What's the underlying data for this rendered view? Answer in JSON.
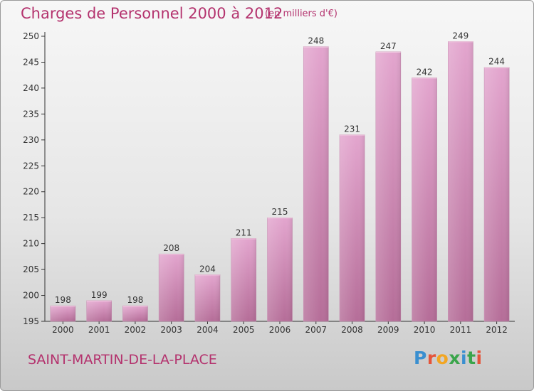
{
  "header": {
    "title": "Charges de Personnel 2000 à 2012",
    "subtitle": "(en milliers d'€)"
  },
  "footer": {
    "commune": "SAINT-MARTIN-DE-LA-PLACE",
    "logo_letters": [
      "P",
      "r",
      "o",
      "x",
      "i",
      "t",
      "i"
    ],
    "logo_colors": [
      "#3a8fd0",
      "#e5543a",
      "#f2a623",
      "#3aa54b",
      "#3a8fd0",
      "#3aa54b",
      "#e5543a"
    ]
  },
  "colors": {
    "bar_light": "#e3a5ce",
    "bar_dark": "#b56d98",
    "accent": "#b4336e"
  },
  "chart_data": {
    "type": "bar",
    "title": "Charges de Personnel 2000 à 2012",
    "subtitle": "(en milliers d'€)",
    "xlabel": "",
    "ylabel": "",
    "categories": [
      "2000",
      "2001",
      "2002",
      "2003",
      "2004",
      "2005",
      "2006",
      "2007",
      "2008",
      "2009",
      "2010",
      "2011",
      "2012"
    ],
    "values": [
      198,
      199,
      198,
      208,
      204,
      211,
      215,
      248,
      231,
      247,
      242,
      249,
      244
    ],
    "ylim": [
      195,
      250
    ],
    "yticks": [
      195,
      200,
      205,
      210,
      215,
      220,
      225,
      230,
      235,
      240,
      245,
      250
    ],
    "grid": false,
    "data_labels": true
  }
}
